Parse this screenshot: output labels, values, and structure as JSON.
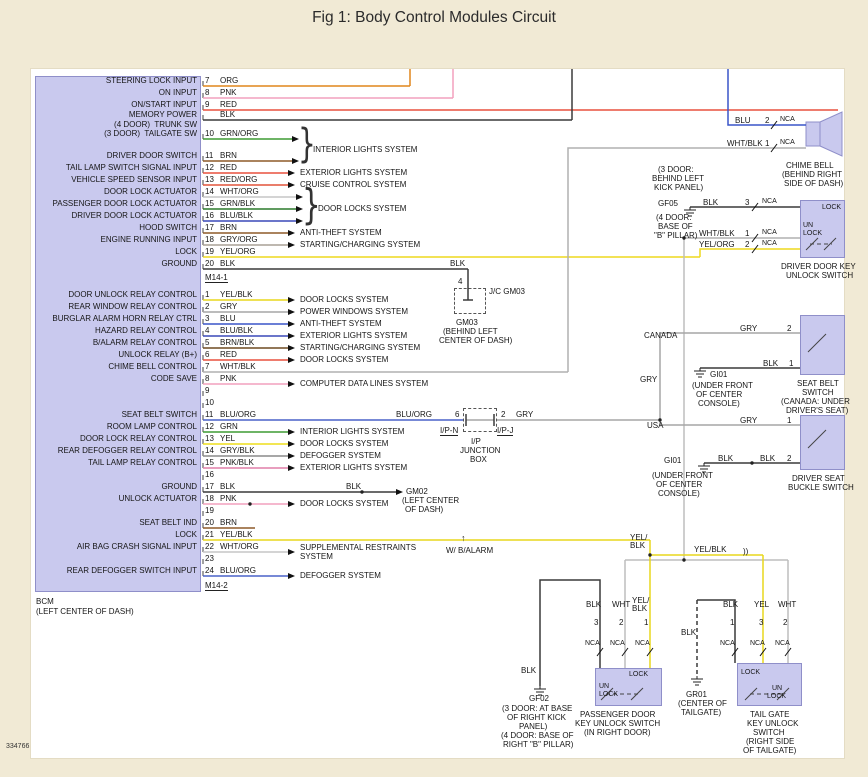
{
  "title": "Fig 1: Body Control Modules Circuit",
  "doc_code": "334766",
  "wire_colors": {
    "ORG": "#e0861c",
    "PNK": "#f2a0bd",
    "RED": "#e8503f",
    "GRN/ORG": "#3f9c33",
    "BRN": "#8e5a28",
    "RED/ORG": "#e2543a",
    "WHT/ORG": "#c6c6c6",
    "GRN/BLK": "#2c7a2c",
    "BLU/BLK": "#3a49b8",
    "GRY/ORG": "#a8a095",
    "YEL/ORG": "#edd91e",
    "BLK": "#3a3a3a",
    "YEL/BLK": "#e8d71d",
    "GRY": "#a6a6a6",
    "BLU": "#3a55c8",
    "BRN/BLK": "#6e4a20",
    "WHT/BLK": "#b0b0b0",
    "GRN": "#3f9c33",
    "YEL": "#eede1c",
    "GRY/BLK": "#8a8a8a",
    "PNK/BLK": "#e07fa8",
    "BLU/ORG": "#4a62c8",
    "WHT": "#bdbdbd"
  },
  "bcm": {
    "name": "BCM",
    "location": "(LEFT CENTER OF DASH)",
    "connector_top": "M14-1",
    "connector_bottom": "M14-2",
    "rows_m14_1": [
      {
        "pin": "7",
        "label": "STEERING LOCK INPUT",
        "wire": "ORG"
      },
      {
        "pin": "8",
        "label": "ON INPUT",
        "wire": "PNK"
      },
      {
        "pin": "9",
        "label": "ON/START INPUT",
        "wire": "RED"
      },
      {
        "pin": "",
        "label": "MEMORY POWER",
        "wire": "BLK"
      },
      {
        "pin": "10",
        "label": "(4 DOOR)  TRUNK SW",
        "label2": "(3 DOOR)  TAILGATE SW",
        "wire": "GRN/ORG",
        "system": "INTERIOR LIGHTS SYSTEM"
      },
      {
        "pin": "11",
        "label": "DRIVER DOOR SWITCH",
        "wire": "BRN"
      },
      {
        "pin": "12",
        "label": "TAIL LAMP SWITCH SIGNAL INPUT",
        "wire": "RED",
        "system": "EXTERIOR LIGHTS SYSTEM"
      },
      {
        "pin": "13",
        "label": "VEHICLE SPEED SENSOR INPUT",
        "wire": "RED/ORG",
        "system": "CRUISE CONTROL SYSTEM"
      },
      {
        "pin": "14",
        "label": "DOOR LOCK ACTUATOR",
        "wire": "WHT/ORG",
        "system": "DOOR LOCKS SYSTEM"
      },
      {
        "pin": "15",
        "label": "PASSENGER DOOR LOCK ACTUATOR",
        "wire": "GRN/BLK"
      },
      {
        "pin": "16",
        "label": "DRIVER DOOR LOCK ACTUATOR",
        "wire": "BLU/BLK"
      },
      {
        "pin": "17",
        "label": "HOOD SWITCH",
        "wire": "BRN",
        "system": "ANTI-THEFT SYSTEM"
      },
      {
        "pin": "18",
        "label": "ENGINE RUNNING INPUT",
        "wire": "GRY/ORG",
        "system": "STARTING/CHARGING SYSTEM"
      },
      {
        "pin": "19",
        "label": "LOCK",
        "wire": "YEL/ORG"
      },
      {
        "pin": "20",
        "label": "GROUND",
        "wire": "BLK"
      }
    ],
    "rows_m14_2": [
      {
        "pin": "1",
        "label": "DOOR UNLOCK RELAY CONTROL",
        "wire": "YEL/BLK",
        "system": "DOOR LOCKS SYSTEM"
      },
      {
        "pin": "2",
        "label": "REAR WINDOW RELAY CONTROL",
        "wire": "GRY",
        "system": "POWER WINDOWS SYSTEM"
      },
      {
        "pin": "3",
        "label": "BURGLAR ALARM HORN RELAY CTRL",
        "wire": "BLU",
        "system": "ANTI-THEFT SYSTEM"
      },
      {
        "pin": "4",
        "label": "HAZARD RELAY CONTROL",
        "wire": "BLU/BLK",
        "system": "EXTERIOR LIGHTS SYSTEM"
      },
      {
        "pin": "5",
        "label": "B/ALARM RELAY CONTROL",
        "wire": "BRN/BLK",
        "system": "STARTING/CHARGING SYSTEM"
      },
      {
        "pin": "6",
        "label": "UNLOCK RELAY (B+)",
        "wire": "RED",
        "system": "DOOR LOCKS SYSTEM"
      },
      {
        "pin": "7",
        "label": "CHIME BELL CONTROL",
        "wire": "WHT/BLK"
      },
      {
        "pin": "8",
        "label": "CODE SAVE",
        "wire": "PNK",
        "system": "COMPUTER DATA LINES SYSTEM"
      },
      {
        "pin": "9",
        "label": "",
        "wire": ""
      },
      {
        "pin": "10",
        "label": "",
        "wire": ""
      },
      {
        "pin": "11",
        "label": "SEAT BELT SWITCH",
        "wire": "BLU/ORG"
      },
      {
        "pin": "12",
        "label": "ROOM LAMP CONTROL",
        "wire": "GRN",
        "system": "INTERIOR LIGHTS SYSTEM"
      },
      {
        "pin": "13",
        "label": "DOOR LOCK RELAY CONTROL",
        "wire": "YEL",
        "system": "DOOR LOCKS SYSTEM"
      },
      {
        "pin": "14",
        "label": "REAR DEFOGGER RELAY CONTROL",
        "wire": "GRY/BLK",
        "system": "DEFOGGER SYSTEM"
      },
      {
        "pin": "15",
        "label": "TAIL LAMP RELAY CONTROL",
        "wire": "PNK/BLK",
        "system": "EXTERIOR LIGHTS SYSTEM"
      },
      {
        "pin": "16",
        "label": "",
        "wire": ""
      },
      {
        "pin": "17",
        "label": "GROUND",
        "wire": "BLK"
      },
      {
        "pin": "18",
        "label": "UNLOCK ACTUATOR",
        "wire": "PNK",
        "system": "DOOR LOCKS SYSTEM"
      },
      {
        "pin": "19",
        "label": "",
        "wire": ""
      },
      {
        "pin": "20",
        "label": "SEAT BELT IND",
        "wire": "BRN"
      },
      {
        "pin": "21",
        "label": "LOCK",
        "wire": "YEL/BLK"
      },
      {
        "pin": "22",
        "label": "AIR BAG CRASH SIGNAL INPUT",
        "wire": "WHT/ORG",
        "system": "SUPPLEMENTAL RESTRAINTS",
        "system2": "SYSTEM"
      },
      {
        "pin": "23",
        "label": "",
        "wire": ""
      },
      {
        "pin": "24",
        "label": "REAR DEFOGGER SWITCH INPUT",
        "wire": "BLU/ORG",
        "system": "DEFOGGER SYSTEM"
      }
    ]
  },
  "chime": {
    "name_lines": [
      "CHIME BELL",
      "(BEHIND RIGHT",
      "SIDE OF DASH)"
    ],
    "wire1": {
      "color": "BLU",
      "pin": "2",
      "tag": "NCA"
    },
    "wire2": {
      "color": "WHT/BLK",
      "pin": "1",
      "tag": "NCA"
    }
  },
  "gf05": {
    "id": "GF05",
    "note1": [
      "(3 DOOR:",
      "BEHIND LEFT",
      "KICK PANEL)"
    ],
    "note2": [
      "(4 DOOR:",
      "BASE OF",
      "\"B\" PILLAR)"
    ]
  },
  "driver_door_key_unlock_switch": {
    "name_lines": [
      "DRIVER DOOR KEY",
      "UNLOCK SWITCH"
    ],
    "wire1": {
      "color": "BLK",
      "pin": "3",
      "tag": "NCA"
    },
    "wire2": {
      "color": "WHT/BLK",
      "pin": "1",
      "tag": "NCA"
    },
    "wire3": {
      "color": "YEL/ORG",
      "pin": "2",
      "tag": "NCA"
    },
    "pos_un": "UN",
    "pos_lock": "LOCK"
  },
  "regions": {
    "canada": "CANADA",
    "usa": "USA"
  },
  "seat_belt_switch": {
    "name_lines": [
      "SEAT BELT",
      "SWITCH",
      "(CANADA: UNDER",
      "DRIVER'S SEAT)"
    ],
    "wire1": {
      "color": "GRY",
      "pin": "2"
    },
    "wire2": {
      "color": "BLK",
      "pin": "1"
    }
  },
  "gi01_canada": {
    "id": "GI01",
    "note": [
      "(UNDER FRONT",
      "OF CENTER",
      "CONSOLE)"
    ]
  },
  "driver_seat_buckle_switch": {
    "name_lines": [
      "DRIVER SEAT",
      "BUCKLE SWITCH"
    ],
    "wire1": {
      "color": "GRY",
      "pin": "1"
    },
    "wire2": {
      "color": "BLK",
      "color2": "BLK",
      "pin": "2"
    }
  },
  "gi01_usa": {
    "id": "GI01",
    "note": [
      "(UNDER FRONT",
      "OF CENTER",
      "CONSOLE)"
    ]
  },
  "ip_junction_box": {
    "pin_left": "6",
    "pin_right": "2",
    "conn_left": "I/P-N",
    "conn_right": "I/P-J",
    "name_lines": [
      "I/P",
      "JUNCTION",
      "BOX"
    ],
    "wire_in": "BLU/ORG",
    "wire_out": "GRY",
    "wire_mid": "GRY"
  },
  "jc_gm03": {
    "tag": "J/C GM03",
    "pin": "4",
    "wire": "BLK",
    "note": [
      "GM03",
      "(BEHIND LEFT",
      "CENTER OF DASH)"
    ]
  },
  "gm02": {
    "wire": "BLK",
    "id": "GM02",
    "note": [
      "(LEFT CENTER",
      "OF DASH)"
    ]
  },
  "srs_note": {
    "text": "W/ B/ALARM",
    "arrow": "↑"
  },
  "yel_blk_net": {
    "turn_label": [
      "YEL/",
      "BLK"
    ],
    "h_label": "YEL/BLK",
    "splice": "))"
  },
  "passenger_door_key_unlock_switch": {
    "name_lines": [
      "PASSENGER DOOR",
      "KEY UNLOCK SWITCH",
      "(IN RIGHT DOOR)"
    ],
    "wire1": {
      "color": "BLK",
      "pin": "3",
      "tag": "NCA"
    },
    "wire2": {
      "color": "WHT",
      "pin": "2",
      "tag": "NCA"
    },
    "wire3": {
      "color_lines": [
        "YEL/",
        "BLK"
      ],
      "pin": "1",
      "tag": "NCA"
    },
    "pos_un": "UN",
    "pos_lock": "LOCK"
  },
  "gf02": {
    "id": "GF02",
    "wire": "BLK",
    "note": [
      "(3 DOOR: AT BASE",
      "OF RIGHT KICK",
      "PANEL)",
      "(4 DOOR: BASE OF",
      "RIGHT \"B\" PILLAR)"
    ]
  },
  "tail_gate_key_unlock_switch": {
    "name_lines": [
      "TAIL GATE",
      "KEY UNLOCK",
      "SWITCH",
      "(RIGHT SIDE",
      "OF TAILGATE)"
    ],
    "wire1": {
      "color": "BLK",
      "pin": "1",
      "tag": "NCA"
    },
    "wire2": {
      "color": "YEL",
      "pin": "3",
      "tag": "NCA"
    },
    "wire3": {
      "color": "WHT",
      "pin": "2",
      "tag": "NCA"
    },
    "pos_un": "UN",
    "pos_lock": "LOCK"
  },
  "gr01": {
    "id": "GR01",
    "wire": "BLK",
    "note": [
      "(CENTER OF",
      "TAILGATE)"
    ]
  }
}
